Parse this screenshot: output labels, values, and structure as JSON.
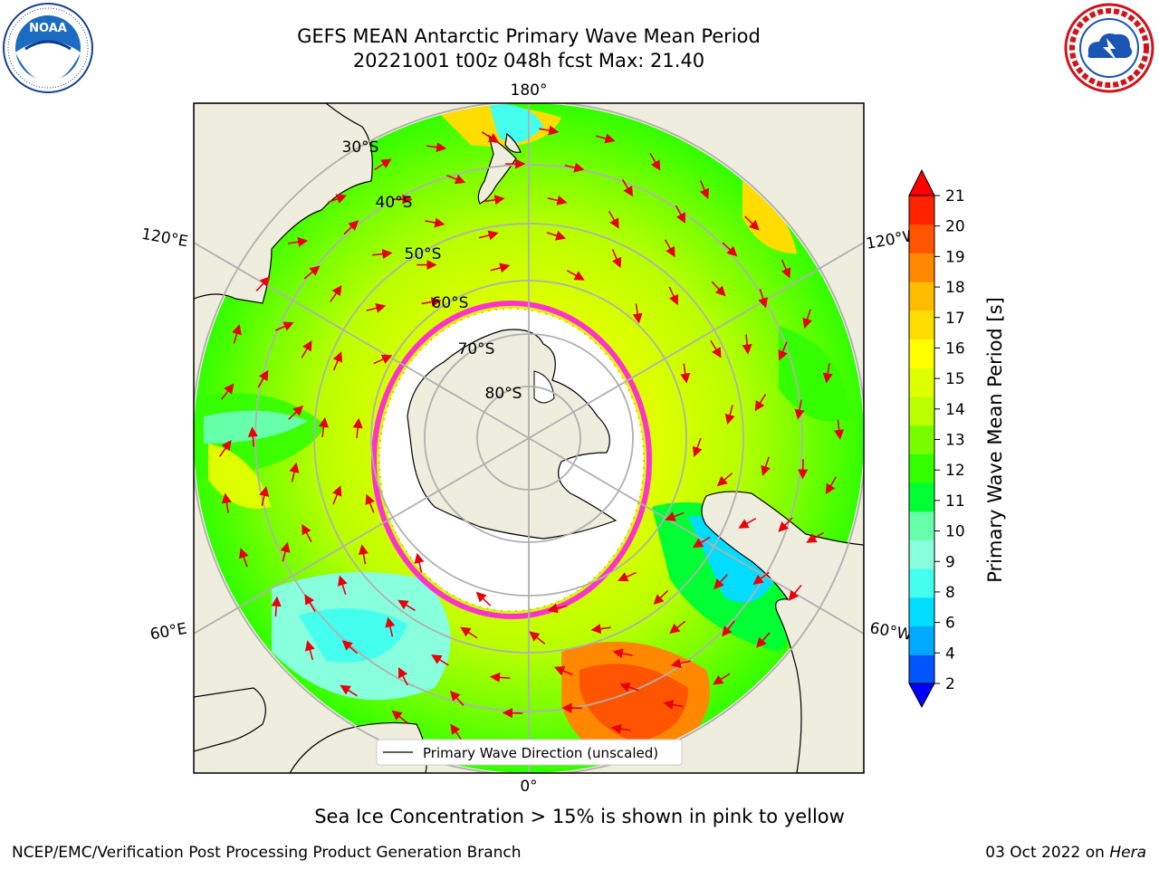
{
  "header": {
    "title_line1": "GEFS MEAN Antarctic Primary Wave Mean Period",
    "title_line2": "20221001 t00z 048h fcst   Max: 21.40"
  },
  "logos": {
    "left": {
      "icon": "noaa-logo",
      "ring_text": "NATIONAL OCEANIC AND ATMOSPHERIC ADMINISTRATION · U.S. DEPARTMENT OF COMMERCE",
      "center_text": "NOAA"
    },
    "right": {
      "icon": "nws-logo",
      "ring_text": "NATIONAL WEATHER SERVICE"
    }
  },
  "map": {
    "projection": "south-polar-stereographic",
    "meridian_labels": {
      "top": "180°",
      "bottom": "0°",
      "left_upper": "120°E",
      "left_lower": "60°E",
      "right_upper": "120°W",
      "right_lower": "60°W"
    },
    "latitude_labels": [
      "30°S",
      "40°S",
      "50°S",
      "60°S",
      "70°S",
      "80°S"
    ],
    "legend_label": "Primary Wave Direction (unscaled)",
    "colors": {
      "land": "#efedde",
      "arrow": "#e8000b",
      "sea_ice": "#ff33cc",
      "background": "#ffffff"
    }
  },
  "colorbar": {
    "label": "Primary Wave Mean Period [s]",
    "ticks": [
      "2",
      "4",
      "6",
      "8",
      "9",
      "10",
      "11",
      "12",
      "13",
      "14",
      "15",
      "16",
      "17",
      "18",
      "19",
      "20",
      "21"
    ],
    "colors": [
      "#0000ff",
      "#0055ff",
      "#00aaff",
      "#00ddff",
      "#44ffee",
      "#88ffdd",
      "#66ffaa",
      "#00ff33",
      "#33ff00",
      "#77ff00",
      "#bbff00",
      "#ddff00",
      "#ffff00",
      "#ffdd00",
      "#ffbb00",
      "#ff8800",
      "#ff5500",
      "#ff2200",
      "#ff0000"
    ]
  },
  "caption": "Sea Ice Concentration > 15% is shown in pink to yellow",
  "footer": {
    "left": "NCEP/EMC/Verification Post Processing Product Generation Branch",
    "right_date": "03 Oct 2022 on ",
    "right_machine": "Hera"
  }
}
